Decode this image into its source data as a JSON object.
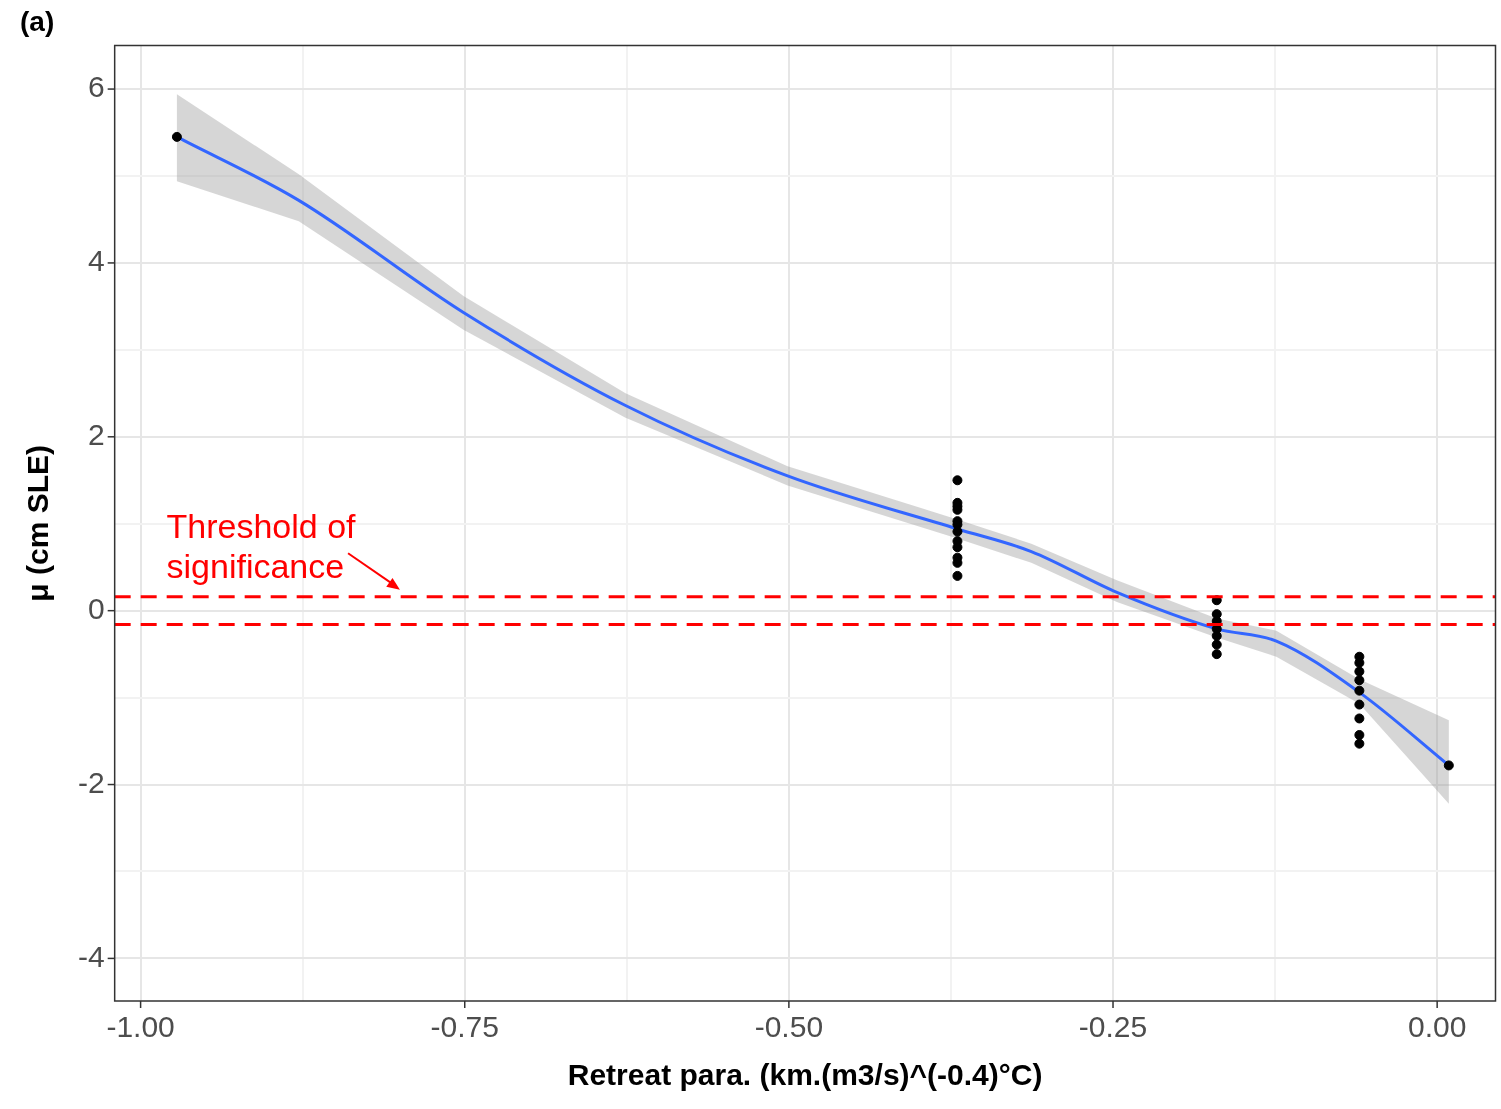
{
  "chart_data": {
    "type": "scatter",
    "title": "(a)",
    "xlabel": "Retreat para. (km.(m3/s)^(-0.4)°C)",
    "ylabel": "μ (cm SLE)",
    "xlim": [
      -1.02,
      0.045
    ],
    "ylim": [
      -4.49,
      6.5
    ],
    "xticks": [
      {
        "value": -1,
        "label": "-1.00"
      },
      {
        "value": -0.875,
        "label": null
      },
      {
        "value": -0.75,
        "label": "-0.75"
      },
      {
        "value": -0.625,
        "label": null
      },
      {
        "value": -0.5,
        "label": "-0.50"
      },
      {
        "value": -0.375,
        "label": null
      },
      {
        "value": -0.25,
        "label": "-0.25"
      },
      {
        "value": -0.125,
        "label": null
      },
      {
        "value": 0,
        "label": "0.00"
      }
    ],
    "yticks": [
      -4,
      {
        "value": -3,
        "label": null
      },
      -2,
      {
        "value": -1,
        "label": null
      },
      0,
      {
        "value": 1,
        "label": null
      },
      2,
      {
        "value": 3,
        "label": null
      },
      4,
      {
        "value": 5,
        "label": null
      },
      6
    ],
    "grid": true,
    "legend": false,
    "series": [
      {
        "color": "#000000",
        "marker": "circle",
        "x": [
          -0.972,
          -0.37,
          -0.37,
          -0.37,
          -0.37,
          -0.37,
          -0.37,
          -0.37,
          -0.37,
          -0.37,
          -0.37,
          -0.37,
          -0.37,
          -0.17,
          -0.17,
          -0.17,
          -0.17,
          -0.17,
          -0.17,
          -0.17,
          -0.06,
          -0.06,
          -0.06,
          -0.06,
          -0.06,
          -0.06,
          -0.06,
          -0.06,
          -0.06,
          0.009
        ],
        "values": [
          5.45,
          1.5,
          1.24,
          1.2,
          1.16,
          1.03,
          0.99,
          0.91,
          0.8,
          0.73,
          0.61,
          0.55,
          0.4,
          0.12,
          -0.04,
          -0.12,
          -0.21,
          -0.29,
          -0.39,
          -0.5,
          -0.53,
          -0.6,
          -0.7,
          -0.8,
          -0.92,
          -1.08,
          -1.24,
          -1.43,
          -1.53,
          -1.78
        ]
      },
      {
        "type": "line",
        "color": "#3366ff",
        "line_style": "solid",
        "marker": "none",
        "x": [
          -0.972,
          -0.878,
          -0.751,
          -0.626,
          -0.501,
          -0.37,
          -0.313,
          -0.247,
          -0.17,
          -0.124,
          -0.06,
          0.009
        ],
        "values": [
          5.45,
          4.72,
          3.43,
          2.36,
          1.55,
          0.94,
          0.68,
          0.21,
          -0.21,
          -0.35,
          -0.94,
          -1.78
        ],
        "lower": [
          4.94,
          4.48,
          3.23,
          2.22,
          1.44,
          0.83,
          0.55,
          0.1,
          -0.31,
          -0.53,
          -1.07,
          -2.22
        ],
        "upper": [
          5.94,
          5.02,
          3.62,
          2.5,
          1.66,
          1.05,
          0.77,
          0.35,
          -0.09,
          -0.23,
          -0.79,
          -1.26
        ]
      }
    ],
    "ref_lines": [
      {
        "axis": "y",
        "value": 0.16,
        "color": "#ff0000",
        "line_style": "dashed"
      },
      {
        "axis": "y",
        "value": -0.16,
        "color": "#ff0000",
        "line_style": "dashed"
      }
    ],
    "annotations": [
      "Threshold of significance"
    ]
  }
}
